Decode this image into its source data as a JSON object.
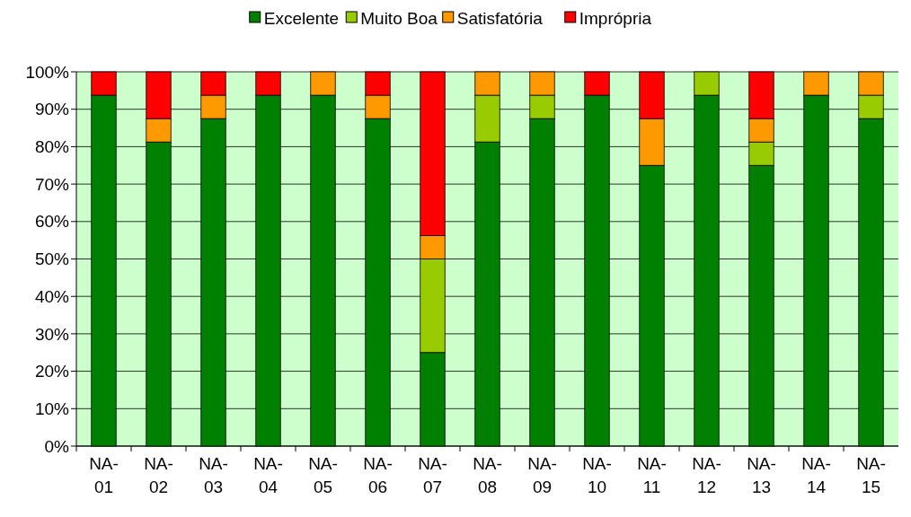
{
  "chart_data": {
    "type": "bar",
    "stacked": true,
    "legend": "top",
    "grid": "y",
    "categories": [
      "NA-01",
      "NA-02",
      "NA-03",
      "NA-04",
      "NA-05",
      "NA-06",
      "NA-07",
      "NA-08",
      "NA-09",
      "NA-10",
      "NA-11",
      "NA-12",
      "NA-13",
      "NA-14",
      "NA-15"
    ],
    "series": [
      {
        "name": "Excelente",
        "color": "#008000",
        "values": [
          93.75,
          81.25,
          87.5,
          93.75,
          93.75,
          87.5,
          25,
          81.25,
          87.5,
          93.75,
          75,
          93.75,
          75,
          93.75,
          87.5
        ]
      },
      {
        "name": "Muito Boa",
        "color": "#99cc00",
        "values": [
          0,
          0,
          0,
          0,
          0,
          0,
          25,
          12.5,
          6.25,
          0,
          0,
          6.25,
          6.25,
          0,
          6.25
        ]
      },
      {
        "name": "Satisfatória",
        "color": "#ff9900",
        "values": [
          0,
          6.25,
          6.25,
          0,
          6.25,
          6.25,
          6.25,
          6.25,
          6.25,
          0,
          12.5,
          0,
          6.25,
          6.25,
          6.25
        ]
      },
      {
        "name": "Imprópria",
        "color": "#ff0000",
        "values": [
          6.25,
          12.5,
          6.25,
          6.25,
          0,
          6.25,
          43.75,
          0,
          0,
          6.25,
          12.5,
          0,
          12.5,
          0,
          0
        ]
      }
    ],
    "ylim": [
      0,
      100
    ],
    "yticks": [
      {
        "value": 0,
        "label": "0%"
      },
      {
        "value": 10,
        "label": "10%"
      },
      {
        "value": 20,
        "label": "20%"
      },
      {
        "value": 30,
        "label": "30%"
      },
      {
        "value": 40,
        "label": "40%"
      },
      {
        "value": 50,
        "label": "50%"
      },
      {
        "value": 60,
        "label": "60%"
      },
      {
        "value": 70,
        "label": "70%"
      },
      {
        "value": 80,
        "label": "80%"
      },
      {
        "value": 90,
        "label": "90%"
      },
      {
        "value": 100,
        "label": "100%"
      }
    ]
  }
}
